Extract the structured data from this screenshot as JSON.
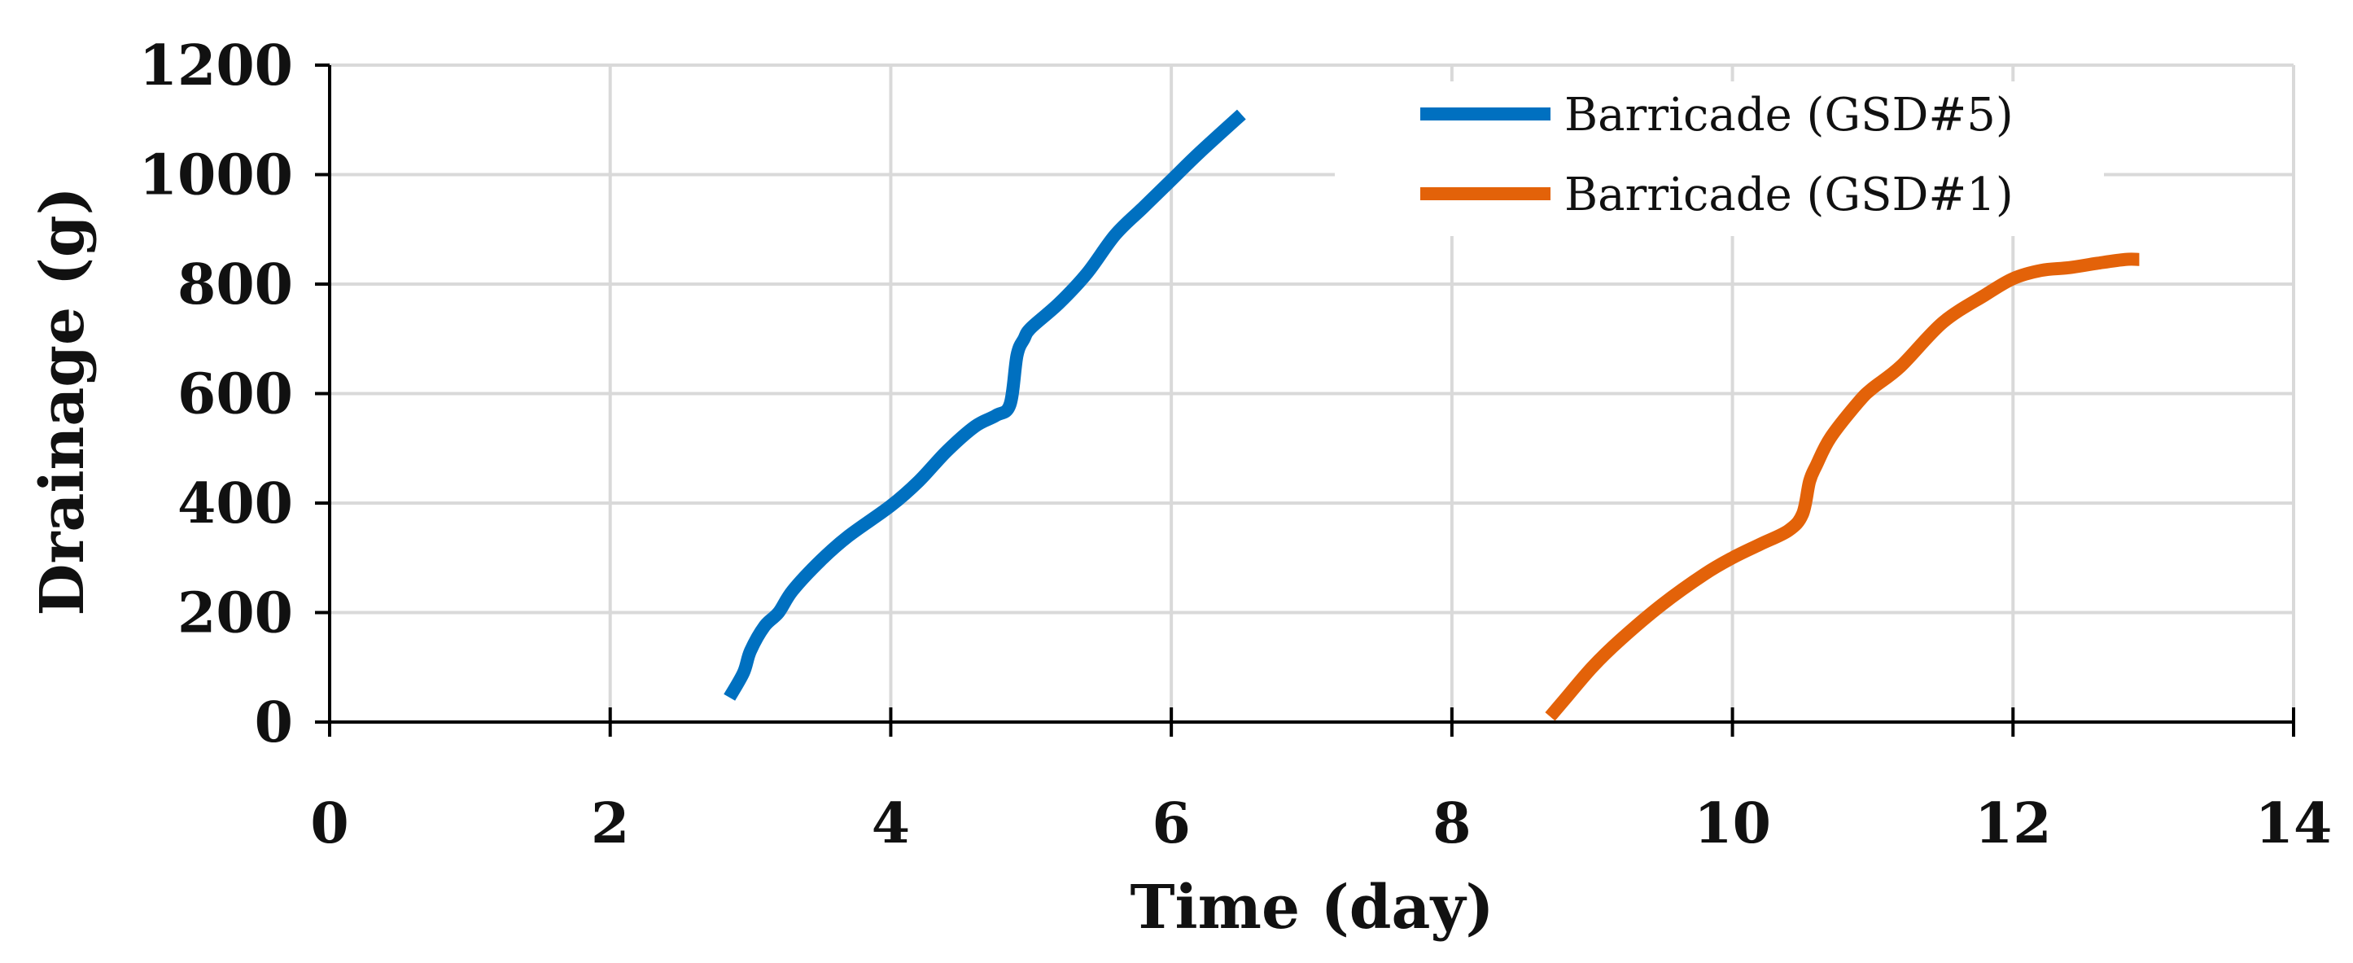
{
  "chart_data": {
    "type": "line",
    "xlabel": "Time (day)",
    "ylabel": "Drainage (g)",
    "xlim": [
      0,
      14
    ],
    "ylim": [
      0,
      1200
    ],
    "xticks": [
      "0",
      "2",
      "4",
      "6",
      "8",
      "10",
      "12",
      "14"
    ],
    "yticks": [
      "0",
      "200",
      "400",
      "600",
      "800",
      "1000",
      "1200"
    ],
    "grid": true,
    "legend_position": "top-right",
    "series": [
      {
        "name": "Barricade (GSD#5)",
        "color": "#0070c0",
        "x": [
          2.85,
          2.95,
          3.0,
          3.1,
          3.2,
          3.3,
          3.5,
          3.7,
          4.0,
          4.2,
          4.4,
          4.6,
          4.75,
          4.85,
          4.9,
          4.95,
          5.0,
          5.2,
          5.4,
          5.6,
          5.8,
          6.0,
          6.2,
          6.5
        ],
        "y": [
          45,
          90,
          130,
          175,
          200,
          240,
          295,
          340,
          395,
          440,
          495,
          540,
          560,
          580,
          670,
          700,
          720,
          765,
          820,
          890,
          940,
          990,
          1040,
          1110
        ]
      },
      {
        "name": "Barricade (GSD#1)",
        "color": "#e36209",
        "x": [
          8.7,
          8.8,
          9.0,
          9.2,
          9.5,
          9.8,
          10.0,
          10.2,
          10.4,
          10.5,
          10.55,
          10.6,
          10.7,
          10.9,
          11.0,
          11.2,
          11.5,
          11.8,
          12.0,
          12.2,
          12.4,
          12.6,
          12.8,
          12.9
        ],
        "y": [
          10,
          40,
          100,
          150,
          215,
          270,
          300,
          325,
          350,
          380,
          440,
          470,
          520,
          585,
          610,
          650,
          730,
          780,
          810,
          825,
          830,
          838,
          845,
          845
        ]
      }
    ]
  }
}
